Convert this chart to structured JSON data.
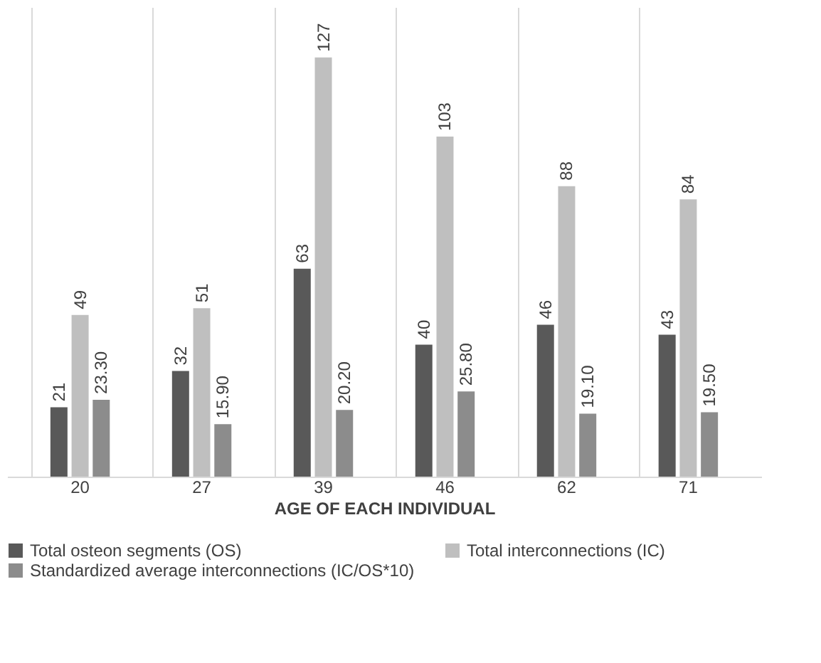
{
  "chart_data": {
    "type": "bar",
    "xlabel": "AGE OF EACH INDIVIDUAL",
    "categories": [
      "20",
      "27",
      "39",
      "46",
      "62",
      "71"
    ],
    "series": [
      {
        "name": "Total  osteon segments (OS)",
        "color": "#595959",
        "values": [
          21,
          32,
          63,
          40,
          46,
          43
        ],
        "value_labels": [
          "21",
          "32",
          "63",
          "40",
          "46",
          "43"
        ]
      },
      {
        "name": "Total interconnections (IC)",
        "color": "#bfbfbf",
        "values": [
          49,
          51,
          127,
          103,
          88,
          84
        ],
        "value_labels": [
          "49",
          "51",
          "127",
          "103",
          "88",
          "84"
        ]
      },
      {
        "name": "Standardized average interconnections (IC/OS*10)",
        "color": "#8c8c8c",
        "values": [
          23.3,
          15.9,
          20.2,
          25.8,
          19.1,
          19.5
        ],
        "value_labels": [
          "23.30",
          "15.90",
          "20.20",
          "25.80",
          "19.10",
          "19.50"
        ]
      }
    ],
    "grid": "x",
    "legend": "bottom",
    "tick_labels": "x"
  }
}
